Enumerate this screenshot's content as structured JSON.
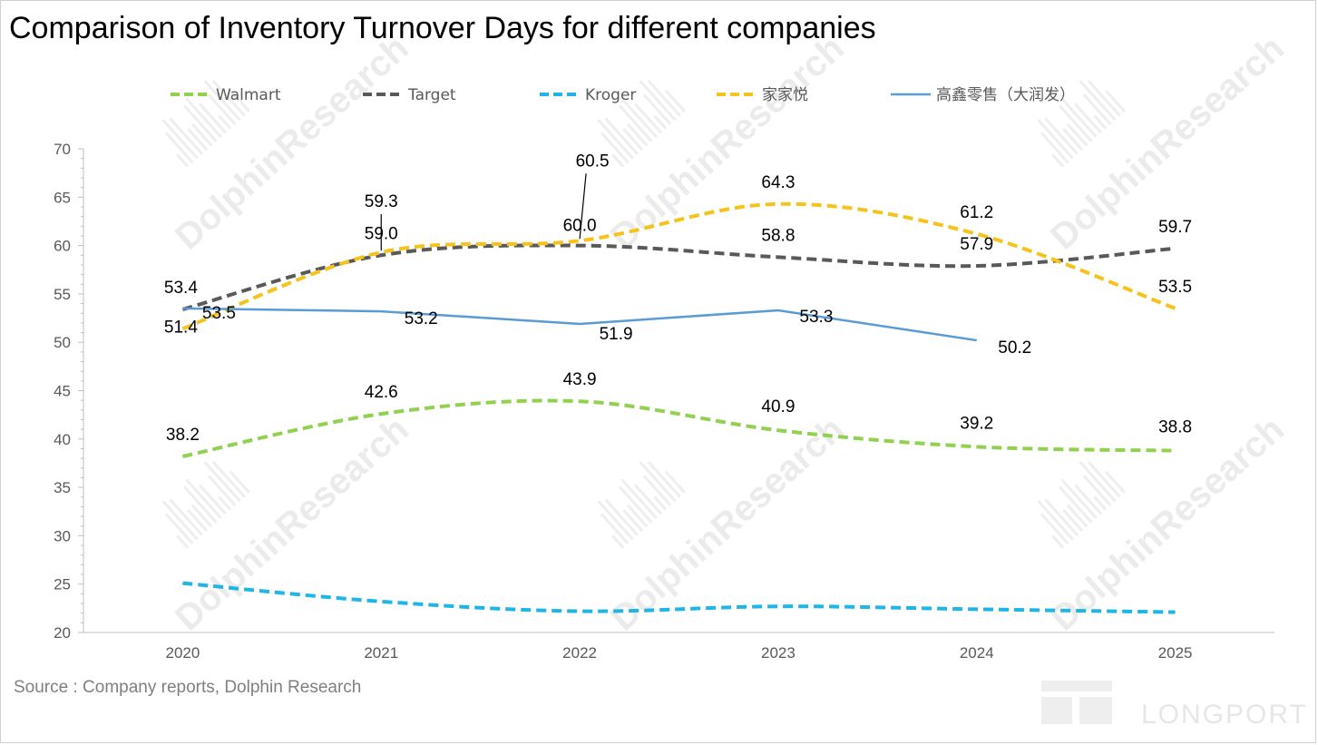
{
  "title": "Comparison of Inventory Turnover Days for different companies",
  "source": "Source : Company reports, Dolphin Research",
  "watermark": "DolphinResearch",
  "logo": "LONGPORT",
  "chart_data": {
    "type": "line",
    "title": "Comparison of Inventory Turnover Days for different companies",
    "xlabel": "",
    "ylabel": "",
    "categories": [
      "2020",
      "2021",
      "2022",
      "2023",
      "2024",
      "2025"
    ],
    "y_ticks": [
      "20",
      "25",
      "30",
      "35",
      "40",
      "45",
      "50",
      "55",
      "60",
      "65",
      "70"
    ],
    "ylim": [
      20,
      70
    ],
    "grid": false,
    "legend_position": "top",
    "series": [
      {
        "name": "Walmart",
        "values": [
          38.2,
          42.6,
          43.9,
          40.9,
          39.2,
          38.8
        ],
        "color": "#92d050",
        "dashed": true,
        "smooth": true,
        "labels": true
      },
      {
        "name": "Target",
        "values": [
          53.4,
          59.0,
          60.0,
          58.8,
          57.9,
          59.7
        ],
        "color": "#595959",
        "dashed": true,
        "smooth": true,
        "labels": true
      },
      {
        "name": "Kroger",
        "values": [
          25.1,
          23.2,
          22.2,
          22.7,
          22.4,
          22.1
        ],
        "color": "#1fb5e6",
        "dashed": true,
        "smooth": true,
        "labels": false
      },
      {
        "name": "家家悦",
        "values": [
          51.4,
          59.3,
          60.5,
          64.3,
          61.2,
          53.5
        ],
        "color": "#f5c31b",
        "dashed": true,
        "smooth": true,
        "labels": true
      },
      {
        "name": "高鑫零售（大润发）",
        "values": [
          53.5,
          53.2,
          51.9,
          53.3,
          50.2,
          null
        ],
        "color": "#5b9bd5",
        "dashed": false,
        "smooth": false,
        "labels": true
      }
    ]
  }
}
